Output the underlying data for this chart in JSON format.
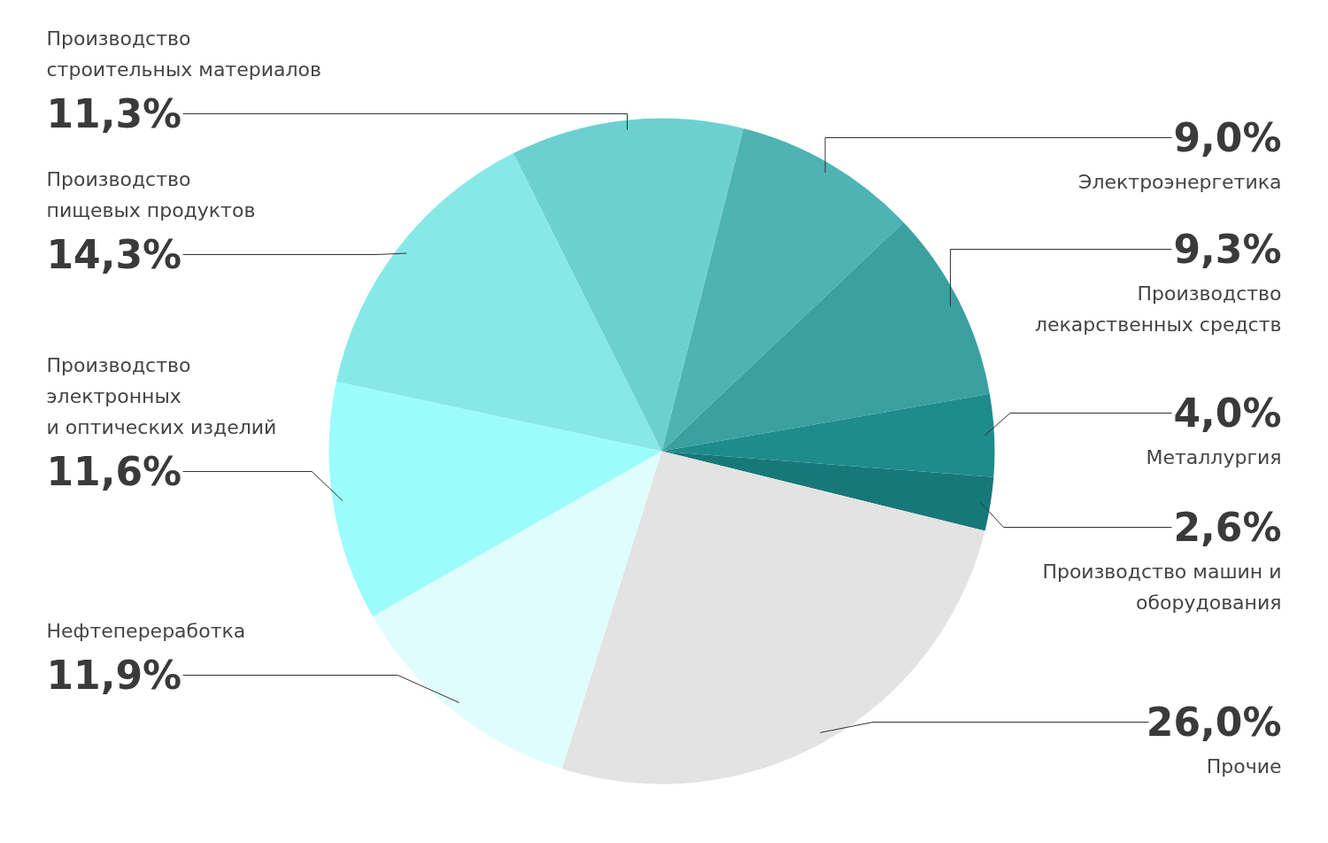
{
  "chart_data": {
    "type": "pie",
    "categories": [
      "Электроэнергетика",
      "Производство\nлекарственных средств",
      "Металлургия",
      "Производство машин и\nоборудования",
      "Прочие",
      "Нефтепереработка",
      "Производство\nэлектронных\nи оптических изделий",
      "Производство\nпищевых продуктов",
      "Производство\nстроительных материалов"
    ],
    "values": [
      9.0,
      9.3,
      4.0,
      2.6,
      26.0,
      11.9,
      11.6,
      14.3,
      11.3
    ],
    "value_labels": [
      "9,0%",
      "9,3%",
      "4,0%",
      "2,6%",
      "26,0%",
      "11,9%",
      "11,6%",
      "14,3%",
      "11,3%"
    ],
    "colors": [
      "#4db3b3",
      "#3aa0a0",
      "#1e8c8a",
      "#17787a",
      "#e3e3e3",
      "#e0fdfd",
      "#9cfcfc",
      "#88e8e8",
      "#6dd0d0"
    ]
  }
}
